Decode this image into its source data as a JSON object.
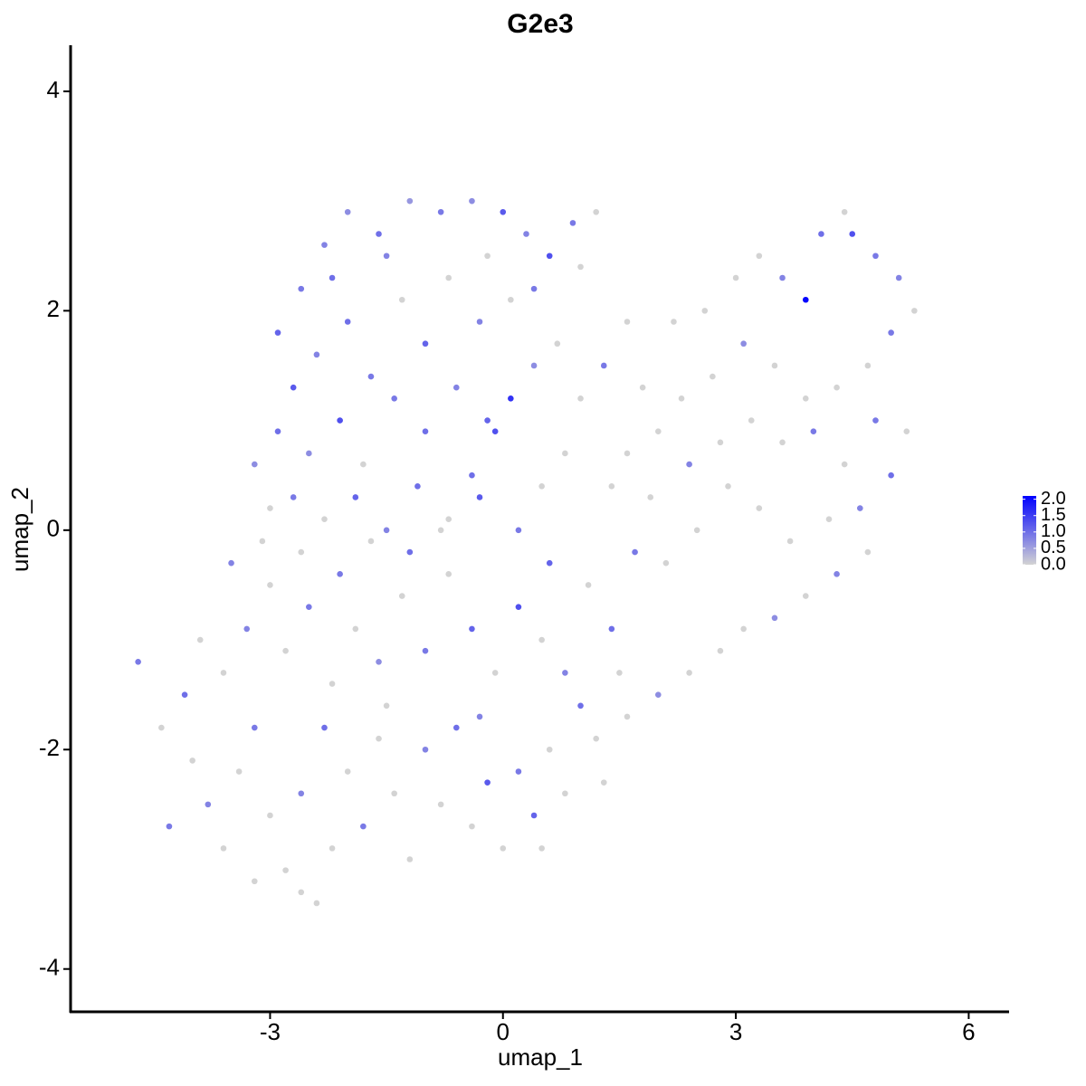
{
  "chart_data": {
    "type": "scatter",
    "title": "G2e3",
    "xlabel": "umap_1",
    "ylabel": "umap_2",
    "xlim": [
      -5.57,
      6.52
    ],
    "ylim": [
      -4.39,
      4.42
    ],
    "xticks": [
      -3,
      0,
      3,
      6
    ],
    "yticks": [
      -4,
      -2,
      0,
      2,
      4
    ],
    "color_low": "#d3d3d3",
    "color_high": "#0000ff",
    "clim": [
      0,
      2.1
    ],
    "cticks": [
      {
        "value": 0,
        "label": "0.0"
      },
      {
        "value": 0.5,
        "label": "0.5"
      },
      {
        "value": 1,
        "label": "1.0"
      },
      {
        "value": 1.5,
        "label": "1.5"
      },
      {
        "value": 2,
        "label": "2.0"
      }
    ],
    "x": [
      -2.9,
      -2.6,
      -2.3,
      -2.0,
      -1.6,
      -1.2,
      -0.8,
      -0.4,
      0.0,
      0.3,
      0.6,
      0.9,
      -2.7,
      -2.4,
      -2.0,
      -1.7,
      -1.3,
      -1.0,
      -0.7,
      -0.3,
      0.1,
      0.4,
      -2.9,
      -2.5,
      -2.1,
      -1.8,
      -1.4,
      -1.0,
      -0.6,
      -0.2,
      0.1,
      -0.4,
      -0.1,
      -3.2,
      -3.0,
      -2.7,
      -2.3,
      -1.9,
      -1.5,
      -1.1,
      -0.7,
      -0.3,
      0.2,
      0.5,
      0.8,
      1.0,
      1.3,
      1.6,
      0.7,
      1.0,
      0.4,
      -2.2,
      -1.5,
      -0.2,
      1.2,
      1.8,
      2.2,
      2.6,
      3.0,
      3.3,
      3.6,
      3.9,
      4.1,
      4.4,
      4.5,
      4.8,
      5.1,
      5.3,
      5.0,
      4.7,
      4.3,
      3.9,
      3.5,
      3.1,
      2.7,
      2.3,
      2.0,
      1.6,
      1.4,
      1.9,
      2.4,
      2.8,
      3.2,
      3.6,
      4.0,
      4.4,
      4.8,
      5.2,
      5.0,
      4.6,
      4.2,
      3.7,
      3.3,
      2.9,
      2.5,
      2.1,
      1.7,
      4.3,
      3.9,
      3.5,
      3.1,
      2.8,
      2.4,
      2.0,
      1.6,
      1.2,
      4.7,
      -4.7,
      -4.4,
      -4.1,
      -4.0,
      -3.8,
      -3.6,
      -3.4,
      -3.2,
      -3.0,
      -2.8,
      -2.6,
      -2.4,
      -2.2,
      -2.0,
      -1.8,
      -1.6,
      -1.4,
      -1.2,
      -1.0,
      -0.8,
      -0.6,
      -0.4,
      -0.2,
      0.0,
      0.2,
      0.4,
      0.6,
      0.8,
      1.0,
      -3.6,
      -3.3,
      -3.0,
      -2.8,
      -2.5,
      -2.2,
      -1.9,
      -1.6,
      -1.3,
      -1.0,
      -0.7,
      -0.4,
      -0.1,
      0.2,
      0.5,
      0.8,
      1.1,
      1.4,
      -3.5,
      -3.1,
      -2.6,
      -2.1,
      -1.7,
      -1.2,
      -0.8,
      0.6,
      1.5,
      -3.9,
      -4.3,
      -3.2,
      -2.6,
      0.5,
      -1.5,
      -0.3,
      1.3,
      -2.3
    ],
    "y": [
      1.8,
      2.2,
      2.6,
      2.9,
      2.7,
      3.0,
      2.9,
      3.0,
      2.9,
      2.7,
      2.5,
      2.8,
      1.3,
      1.6,
      1.9,
      1.4,
      2.1,
      1.7,
      2.3,
      1.9,
      2.1,
      2.2,
      0.9,
      0.7,
      1.0,
      0.6,
      1.2,
      0.9,
      1.3,
      1.0,
      1.2,
      0.5,
      0.9,
      0.6,
      0.2,
      0.3,
      0.1,
      0.3,
      0.0,
      0.4,
      0.1,
      0.3,
      0.0,
      0.4,
      0.7,
      1.2,
      1.5,
      1.9,
      1.7,
      2.4,
      1.5,
      2.3,
      2.5,
      2.5,
      2.9,
      1.3,
      1.9,
      2.0,
      2.3,
      2.5,
      2.3,
      2.1,
      2.7,
      2.9,
      2.7,
      2.5,
      2.3,
      2.0,
      1.8,
      1.5,
      1.3,
      1.2,
      1.5,
      1.7,
      1.4,
      1.2,
      0.9,
      0.7,
      0.4,
      0.3,
      0.6,
      0.8,
      1.0,
      0.8,
      0.9,
      0.6,
      1.0,
      0.9,
      0.5,
      0.2,
      0.1,
      -0.1,
      0.2,
      0.4,
      0.0,
      -0.3,
      -0.2,
      -0.4,
      -0.6,
      -0.8,
      -0.9,
      -1.1,
      -1.3,
      -1.5,
      -1.7,
      -1.9,
      -0.2,
      -1.2,
      -1.8,
      -1.5,
      -2.1,
      -2.5,
      -2.9,
      -2.2,
      -1.8,
      -2.6,
      -3.1,
      -2.4,
      -3.4,
      -2.9,
      -2.2,
      -2.7,
      -1.9,
      -2.4,
      -3.0,
      -2.0,
      -2.5,
      -1.8,
      -2.7,
      -2.3,
      -2.9,
      -2.2,
      -2.6,
      -2.0,
      -2.4,
      -1.6,
      -1.3,
      -0.9,
      -0.5,
      -1.1,
      -0.7,
      -1.4,
      -0.9,
      -1.2,
      -0.6,
      -1.1,
      -0.4,
      -0.9,
      -1.3,
      -0.7,
      -1.0,
      -1.3,
      -0.5,
      -0.9,
      -0.3,
      -0.1,
      -0.2,
      -0.4,
      -0.1,
      -0.2,
      0.0,
      -0.3,
      -1.3,
      -1.0,
      -2.7,
      -3.2,
      -3.3,
      -2.9,
      -1.6,
      -1.7,
      -2.3,
      -1.8
    ],
    "values": [
      1.1,
      0.9,
      0.8,
      0.7,
      1.0,
      0.6,
      0.9,
      0.7,
      1.2,
      0.8,
      1.3,
      0.9,
      1.2,
      0.8,
      1.0,
      0.9,
      0,
      1.1,
      0,
      0.8,
      0,
      0.9,
      1.0,
      0.7,
      1.3,
      0,
      0.9,
      1.0,
      0.8,
      1.1,
      1.6,
      1.0,
      1.3,
      0.7,
      0,
      0.9,
      0,
      1.1,
      0.8,
      1.0,
      0,
      1.2,
      0.9,
      0,
      0,
      0,
      0.9,
      0,
      0,
      0,
      0.7,
      1.0,
      0.8,
      0,
      0,
      0,
      0,
      0,
      0,
      0,
      0.8,
      2.05,
      1.0,
      0,
      1.3,
      0.9,
      0.8,
      0,
      0.9,
      0,
      0,
      0,
      0,
      0.7,
      0,
      0,
      0,
      0,
      0,
      0,
      0.8,
      0,
      0,
      0,
      0.9,
      0,
      0.9,
      0,
      1.0,
      0.8,
      0,
      0,
      0,
      0,
      0,
      0,
      0.9,
      0.8,
      0,
      0.7,
      0,
      0,
      0,
      0.7,
      0,
      0,
      0,
      0.9,
      0,
      1.0,
      0,
      0.8,
      0,
      0,
      0.9,
      0,
      0,
      0.8,
      0,
      0,
      0,
      0.9,
      0,
      0,
      0,
      0.8,
      0,
      1.0,
      0,
      1.2,
      0,
      0.9,
      1.1,
      0,
      0,
      1.0,
      0,
      0.8,
      0,
      0,
      0.9,
      0,
      0,
      0.7,
      0,
      0.9,
      0,
      1.1,
      0,
      1.3,
      0,
      0.8,
      0,
      1.0,
      0.8,
      0,
      0,
      0.9,
      0,
      1.0,
      0,
      1.1,
      0,
      0,
      0.9,
      0,
      0,
      0,
      0,
      0.8,
      0,
      1.0
    ]
  }
}
